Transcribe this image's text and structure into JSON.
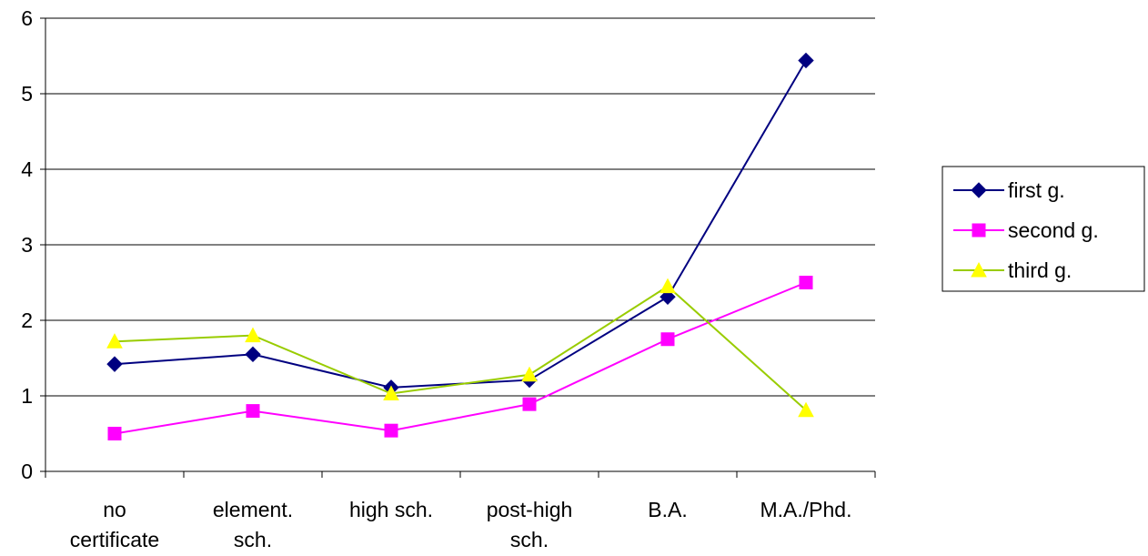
{
  "chart_data": {
    "type": "line",
    "title": "",
    "xlabel": "",
    "ylabel": "",
    "categories": [
      [
        "no",
        "certificate"
      ],
      [
        "element.",
        "sch."
      ],
      [
        "high sch."
      ],
      [
        "post-high",
        "sch."
      ],
      [
        "B.A."
      ],
      [
        "M.A./Phd."
      ]
    ],
    "ylim": [
      0,
      6
    ],
    "yticks": [
      0,
      1,
      2,
      3,
      4,
      5,
      6
    ],
    "grid": "horizontal",
    "legend_position": "right",
    "series": [
      {
        "name": "first g.",
        "color": "#000080",
        "marker": "diamond",
        "values": [
          1.42,
          1.55,
          1.11,
          1.21,
          2.31,
          5.44
        ]
      },
      {
        "name": "second g.",
        "color": "#FF00FF",
        "marker": "square",
        "values": [
          0.5,
          0.8,
          0.54,
          0.89,
          1.75,
          2.5
        ]
      },
      {
        "name": "third g.",
        "color": "#99CC00",
        "marker": "triangle",
        "marker_fill": "#FFFF00",
        "values": [
          1.72,
          1.8,
          1.03,
          1.28,
          2.45,
          0.81
        ]
      }
    ]
  }
}
